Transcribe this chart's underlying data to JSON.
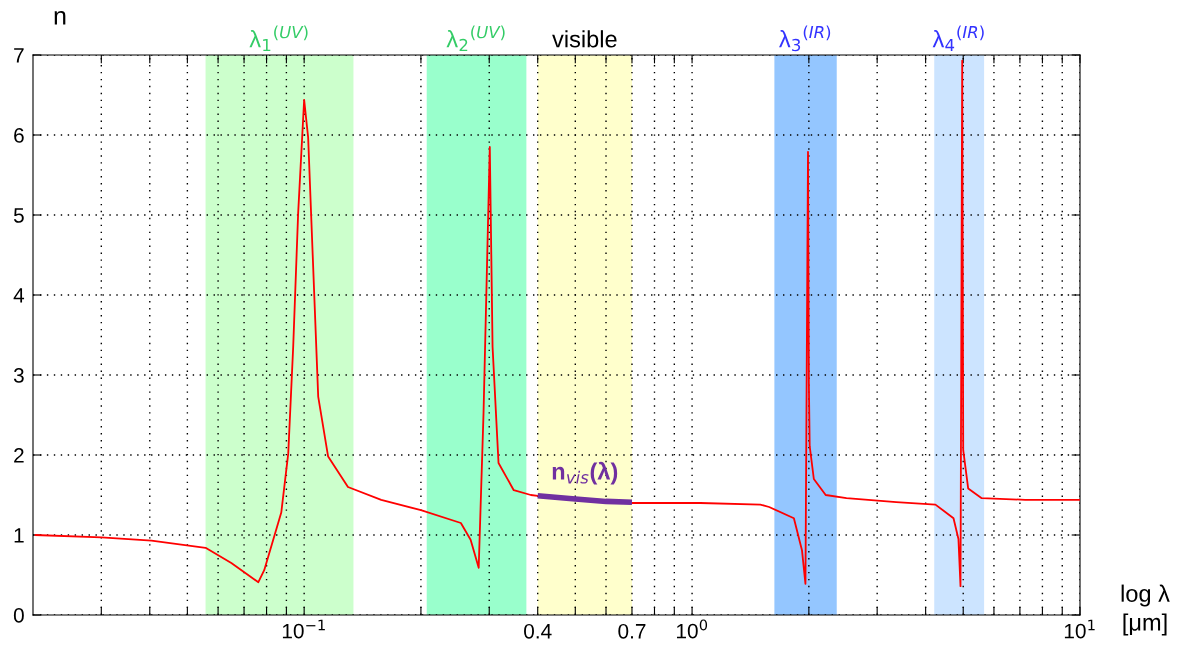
{
  "chart_data": {
    "type": "line",
    "xlabel": "log λ\n[μm]",
    "ylabel": "n",
    "log": "x",
    "grid": true,
    "line_style": "solid",
    "xlim": [
      0.02,
      10
    ],
    "ylim": [
      0,
      7
    ],
    "xticks": [
      {
        "value": 0.03,
        "label": null
      },
      {
        "value": 0.04,
        "label": null
      },
      {
        "value": 0.05,
        "label": null
      },
      {
        "value": 0.06,
        "label": null
      },
      {
        "value": 0.07,
        "label": null
      },
      {
        "value": 0.08,
        "label": null
      },
      {
        "value": 0.09,
        "label": null
      },
      {
        "value": 0.1,
        "label": "10$^{−1}$"
      },
      {
        "value": 0.2,
        "label": null
      },
      {
        "value": 0.3,
        "label": null
      },
      0.4,
      {
        "value": 0.5,
        "label": null
      },
      {
        "value": 0.6,
        "label": null
      },
      0.7,
      {
        "value": 0.8,
        "label": null
      },
      {
        "value": 0.9,
        "label": null
      },
      {
        "value": 1,
        "label": "10$^{0}$"
      },
      {
        "value": 2,
        "label": null
      },
      {
        "value": 3,
        "label": null
      },
      {
        "value": 4,
        "label": null
      },
      {
        "value": 5,
        "label": null
      },
      {
        "value": 6,
        "label": null
      },
      {
        "value": 7,
        "label": null
      },
      {
        "value": 8,
        "label": null
      },
      {
        "value": 9,
        "label": null
      },
      {
        "value": 10,
        "label": "10$^{1}$"
      }
    ],
    "yticks": [
      0,
      1,
      2,
      3,
      4,
      5,
      6,
      7
    ],
    "bands": [
      {
        "axis": "x",
        "from": 0.0557,
        "to": 0.134,
        "label": "λ$_{1}$$^{(UV)}$",
        "color": "#ccffcc"
      },
      {
        "axis": "x",
        "from": 0.207,
        "to": 0.374,
        "label": "λ$_{2}$$^{(UV)}$",
        "color": "#99ffcc"
      },
      {
        "axis": "x",
        "from": 0.4,
        "to": 0.7,
        "label": "visible",
        "color": "#ffffcc"
      },
      {
        "axis": "x",
        "from": 1.63,
        "to": 2.36,
        "label": "λ$_{3}$$^{(IR)}$",
        "color": "#94c6ff"
      },
      {
        "axis": "x",
        "from": 4.21,
        "to": 5.66,
        "label": "λ$_{4}$$^{(IR)}$",
        "color": "#cce4ff"
      }
    ],
    "series": [
      {
        "color": "#ff0000",
        "x": [
          0.0202,
          0.03,
          0.0404,
          0.0557,
          0.0649,
          0.0762,
          0.0789,
          0.0873,
          0.091,
          0.0937,
          0.0965,
          0.1,
          0.1024,
          0.1087,
          0.1153,
          0.1297,
          0.158,
          0.2,
          0.2535,
          0.2686,
          0.2818,
          0.29,
          0.301,
          0.306,
          0.317,
          0.347,
          0.384,
          0.4,
          0.7,
          1.05,
          1.5,
          1.58,
          1.83,
          1.92,
          1.96,
          1.99,
          2.0,
          2.01,
          2.06,
          2.21,
          2.5,
          3.36,
          4.24,
          4.72,
          4.86,
          4.92,
          4.97,
          5.0,
          5.15,
          5.58,
          7.22,
          10
        ],
        "values": [
          1.0,
          0.97,
          0.93,
          0.84,
          0.65,
          0.41,
          0.56,
          1.28,
          2.02,
          3.35,
          5.02,
          6.44,
          5.97,
          2.73,
          1.98,
          1.6,
          1.44,
          1.31,
          1.15,
          0.94,
          0.59,
          2.52,
          5.85,
          3.35,
          1.9,
          1.56,
          1.5,
          1.49,
          1.4,
          1.4,
          1.38,
          1.35,
          1.21,
          0.81,
          0.39,
          5.79,
          2.91,
          2.11,
          1.7,
          1.5,
          1.46,
          1.41,
          1.38,
          1.21,
          0.95,
          0.36,
          6.93,
          2.06,
          1.58,
          1.46,
          1.44,
          1.44
        ]
      },
      {
        "name": "n$_{vis}$(λ)",
        "color": "#7030a0",
        "x": [
          0.4,
          0.5,
          0.6,
          0.7
        ],
        "values": [
          1.49,
          1.45,
          1.42,
          1.41
        ]
      }
    ]
  }
}
